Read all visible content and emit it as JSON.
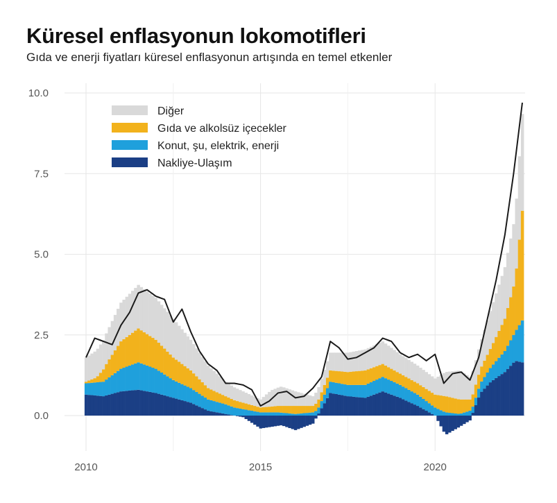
{
  "header": {
    "title": "Küresel enflasyonun lokomotifleri",
    "subtitle": "Gıda ve enerji fiyatları küresel enflasyonun artışında en temel etkenler"
  },
  "colors": {
    "other": "#d9d9d9",
    "food": "#f2b21c",
    "housing": "#1fa0dc",
    "transport": "#1b3f85",
    "line": "#1a1a1a",
    "grid": "#e6e6e6"
  },
  "chart_data": {
    "type": "bar",
    "stacked": true,
    "ylim": [
      -1.0,
      10.2
    ],
    "yticks": [
      "0.0",
      "2.5",
      "5.0",
      "7.5",
      "10.0"
    ],
    "ytick_values": [
      0,
      2.5,
      5,
      7.5,
      10
    ],
    "xticks": [
      "2010",
      "2015",
      "2020"
    ],
    "xtick_values": [
      2010,
      2015,
      2020
    ],
    "x_range": [
      2010.0,
      2022.5
    ],
    "grid": true,
    "legend_position": "top-left",
    "series": [
      {
        "name": "Diğer",
        "key": "other",
        "anchors": [
          [
            2010.0,
            0.75
          ],
          [
            2010.5,
            0.9
          ],
          [
            2011.0,
            1.2
          ],
          [
            2011.5,
            1.35
          ],
          [
            2012.0,
            1.3
          ],
          [
            2012.5,
            1.2
          ],
          [
            2013.0,
            0.95
          ],
          [
            2013.5,
            0.7
          ],
          [
            2014.0,
            0.45
          ],
          [
            2014.5,
            0.35
          ],
          [
            2015.0,
            0.25
          ],
          [
            2015.3,
            0.5
          ],
          [
            2015.6,
            0.6
          ],
          [
            2016.0,
            0.45
          ],
          [
            2016.5,
            0.3
          ],
          [
            2017.0,
            0.55
          ],
          [
            2017.5,
            0.6
          ],
          [
            2018.0,
            0.65
          ],
          [
            2018.5,
            0.7
          ],
          [
            2019.0,
            0.6
          ],
          [
            2019.5,
            0.55
          ],
          [
            2020.0,
            0.5
          ],
          [
            2020.3,
            0.75
          ],
          [
            2020.7,
            0.9
          ],
          [
            2021.0,
            0.7
          ],
          [
            2021.3,
            0.8
          ],
          [
            2021.6,
            1.2
          ],
          [
            2022.0,
            1.6
          ],
          [
            2022.3,
            2.0
          ],
          [
            2022.5,
            3.0
          ]
        ]
      },
      {
        "name": "Gıda ve alkolsüz içecekler",
        "key": "food",
        "anchors": [
          [
            2010.0,
            0.05
          ],
          [
            2010.3,
            0.15
          ],
          [
            2010.6,
            0.5
          ],
          [
            2011.0,
            0.85
          ],
          [
            2011.5,
            1.05
          ],
          [
            2012.0,
            0.9
          ],
          [
            2012.5,
            0.7
          ],
          [
            2013.0,
            0.55
          ],
          [
            2013.5,
            0.35
          ],
          [
            2014.0,
            0.25
          ],
          [
            2014.5,
            0.2
          ],
          [
            2015.0,
            0.15
          ],
          [
            2015.5,
            0.2
          ],
          [
            2016.0,
            0.25
          ],
          [
            2016.5,
            0.2
          ],
          [
            2017.0,
            0.35
          ],
          [
            2017.5,
            0.4
          ],
          [
            2018.0,
            0.45
          ],
          [
            2018.5,
            0.4
          ],
          [
            2019.0,
            0.35
          ],
          [
            2019.5,
            0.35
          ],
          [
            2020.0,
            0.4
          ],
          [
            2020.3,
            0.5
          ],
          [
            2020.7,
            0.45
          ],
          [
            2021.0,
            0.35
          ],
          [
            2021.3,
            0.45
          ],
          [
            2021.6,
            0.6
          ],
          [
            2022.0,
            1.0
          ],
          [
            2022.3,
            1.6
          ],
          [
            2022.5,
            3.4
          ]
        ]
      },
      {
        "name": "Konut, şu, elektrik, enerji",
        "key": "housing",
        "anchors": [
          [
            2010.0,
            0.35
          ],
          [
            2010.5,
            0.45
          ],
          [
            2011.0,
            0.7
          ],
          [
            2011.5,
            0.85
          ],
          [
            2012.0,
            0.75
          ],
          [
            2012.5,
            0.55
          ],
          [
            2013.0,
            0.45
          ],
          [
            2013.5,
            0.35
          ],
          [
            2014.0,
            0.3
          ],
          [
            2014.5,
            0.2
          ],
          [
            2015.0,
            0.1
          ],
          [
            2015.5,
            0.1
          ],
          [
            2016.0,
            0.05
          ],
          [
            2016.5,
            0.1
          ],
          [
            2017.0,
            0.35
          ],
          [
            2017.5,
            0.35
          ],
          [
            2018.0,
            0.4
          ],
          [
            2018.5,
            0.45
          ],
          [
            2019.0,
            0.4
          ],
          [
            2019.5,
            0.35
          ],
          [
            2020.0,
            0.25
          ],
          [
            2020.3,
            0.1
          ],
          [
            2020.7,
            0.05
          ],
          [
            2021.0,
            0.15
          ],
          [
            2021.3,
            0.3
          ],
          [
            2021.6,
            0.45
          ],
          [
            2022.0,
            0.65
          ],
          [
            2022.3,
            0.9
          ],
          [
            2022.5,
            1.3
          ]
        ]
      },
      {
        "name": "Nakliye-Ulaşım",
        "key": "transport",
        "anchors": [
          [
            2010.0,
            0.65
          ],
          [
            2010.5,
            0.6
          ],
          [
            2011.0,
            0.75
          ],
          [
            2011.5,
            0.8
          ],
          [
            2012.0,
            0.7
          ],
          [
            2012.5,
            0.55
          ],
          [
            2013.0,
            0.4
          ],
          [
            2013.5,
            0.15
          ],
          [
            2014.0,
            0.05
          ],
          [
            2014.5,
            -0.05
          ],
          [
            2015.0,
            -0.4
          ],
          [
            2015.3,
            -0.35
          ],
          [
            2015.6,
            -0.3
          ],
          [
            2016.0,
            -0.45
          ],
          [
            2016.5,
            -0.25
          ],
          [
            2017.0,
            0.7
          ],
          [
            2017.5,
            0.6
          ],
          [
            2018.0,
            0.55
          ],
          [
            2018.5,
            0.75
          ],
          [
            2019.0,
            0.55
          ],
          [
            2019.5,
            0.3
          ],
          [
            2020.0,
            0.0
          ],
          [
            2020.3,
            -0.6
          ],
          [
            2020.7,
            -0.35
          ],
          [
            2021.0,
            -0.15
          ],
          [
            2021.3,
            0.7
          ],
          [
            2021.6,
            1.05
          ],
          [
            2022.0,
            1.35
          ],
          [
            2022.3,
            1.7
          ],
          [
            2022.5,
            1.65
          ]
        ]
      }
    ],
    "total_line": {
      "anchors": [
        [
          2010.0,
          1.8
        ],
        [
          2010.25,
          2.4
        ],
        [
          2010.5,
          2.3
        ],
        [
          2010.75,
          2.2
        ],
        [
          2011.0,
          2.8
        ],
        [
          2011.25,
          3.2
        ],
        [
          2011.5,
          3.8
        ],
        [
          2011.75,
          3.9
        ],
        [
          2012.0,
          3.7
        ],
        [
          2012.25,
          3.6
        ],
        [
          2012.5,
          2.9
        ],
        [
          2012.75,
          3.3
        ],
        [
          2013.0,
          2.6
        ],
        [
          2013.25,
          2.0
        ],
        [
          2013.5,
          1.6
        ],
        [
          2013.75,
          1.4
        ],
        [
          2014.0,
          1.0
        ],
        [
          2014.25,
          1.0
        ],
        [
          2014.5,
          0.95
        ],
        [
          2014.75,
          0.8
        ],
        [
          2015.0,
          0.3
        ],
        [
          2015.25,
          0.45
        ],
        [
          2015.5,
          0.7
        ],
        [
          2015.75,
          0.75
        ],
        [
          2016.0,
          0.55
        ],
        [
          2016.25,
          0.6
        ],
        [
          2016.5,
          0.85
        ],
        [
          2016.75,
          1.2
        ],
        [
          2017.0,
          2.3
        ],
        [
          2017.25,
          2.1
        ],
        [
          2017.5,
          1.75
        ],
        [
          2017.75,
          1.8
        ],
        [
          2018.0,
          1.95
        ],
        [
          2018.25,
          2.1
        ],
        [
          2018.5,
          2.4
        ],
        [
          2018.75,
          2.3
        ],
        [
          2019.0,
          1.95
        ],
        [
          2019.25,
          1.8
        ],
        [
          2019.5,
          1.9
        ],
        [
          2019.75,
          1.7
        ],
        [
          2020.0,
          1.9
        ],
        [
          2020.25,
          1.0
        ],
        [
          2020.5,
          1.3
        ],
        [
          2020.75,
          1.35
        ],
        [
          2021.0,
          1.1
        ],
        [
          2021.25,
          1.8
        ],
        [
          2021.5,
          3.0
        ],
        [
          2021.75,
          4.2
        ],
        [
          2022.0,
          5.6
        ],
        [
          2022.25,
          7.5
        ],
        [
          2022.5,
          9.7
        ]
      ]
    }
  }
}
